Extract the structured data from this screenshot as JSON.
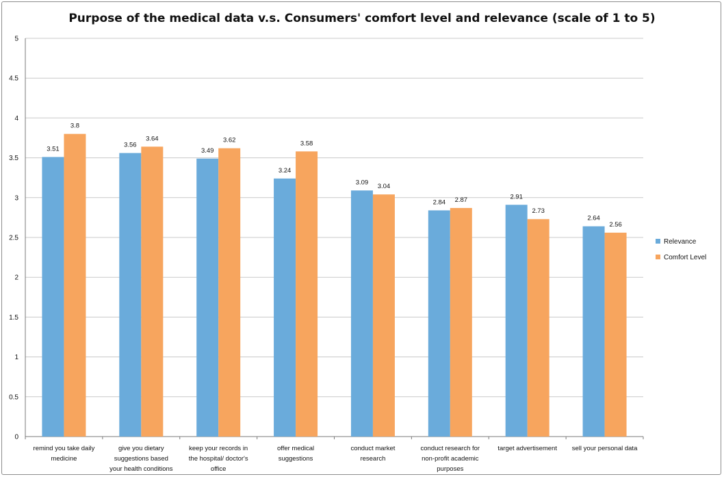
{
  "chart_data": {
    "type": "bar",
    "title": "Purpose of the medical data v.s. Consumers' comfort level and relevance (scale of 1 to 5)",
    "xlabel": "",
    "ylabel": "",
    "ylim": [
      0,
      5
    ],
    "yticks": [
      "0",
      "0.5",
      "1",
      "1.5",
      "2",
      "2.5",
      "3",
      "3.5",
      "4",
      "4.5",
      "5"
    ],
    "grid": true,
    "legend_position": "right",
    "categories": [
      [
        "remind you take daily",
        "medicine"
      ],
      [
        "give you dietary",
        "suggestions based",
        "your health conditions"
      ],
      [
        "keep your records in",
        "the hospital/ doctor's",
        "office"
      ],
      [
        "offer medical",
        "suggestions"
      ],
      [
        "conduct market",
        "research"
      ],
      [
        "conduct research for",
        "non-profit academic",
        "purposes"
      ],
      [
        "target advertisement"
      ],
      [
        "sell your personal data"
      ]
    ],
    "series": [
      {
        "name": "Relevance",
        "color": "#6aabdb",
        "values": [
          3.51,
          3.56,
          3.49,
          3.24,
          3.09,
          2.84,
          2.91,
          2.64
        ],
        "labels": [
          "3.51",
          "3.56",
          "3.49",
          "3.24",
          "3.09",
          "2.84",
          "2.91",
          "2.64"
        ]
      },
      {
        "name": "Comfort Level",
        "color": "#f7a55e",
        "values": [
          3.8,
          3.64,
          3.62,
          3.58,
          3.04,
          2.87,
          2.73,
          2.56
        ],
        "labels": [
          "3.8",
          "3.64",
          "3.62",
          "3.58",
          "3.04",
          "2.87",
          "2.73",
          "2.56"
        ]
      }
    ],
    "colors": {
      "gridline": "#c8c8c8",
      "axis": "#7a7a7a"
    }
  }
}
